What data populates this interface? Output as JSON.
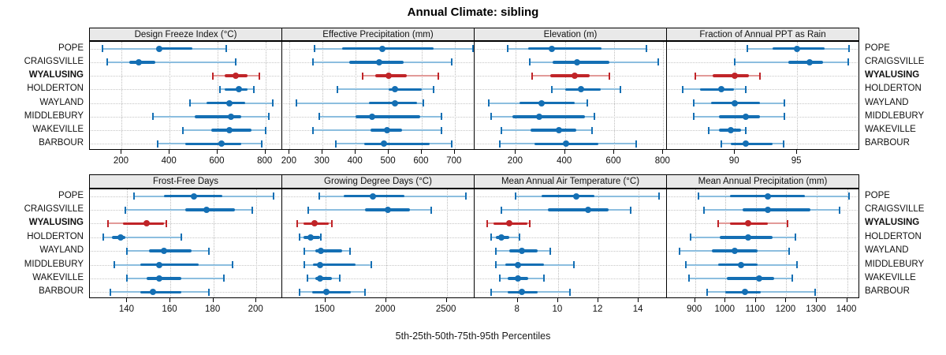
{
  "title": "Annual Climate: sibling",
  "caption": "5th-25th-50th-75th-95th Percentiles",
  "locations": [
    "POPE",
    "CRAIGSVILLE",
    "WYALUSING",
    "HOLDERTON",
    "WAYLAND",
    "MIDDLEBURY",
    "WAKEVILLE",
    "BARBOUR"
  ],
  "highlighted_location": "WYALUSING",
  "colors": {
    "series_dark": "#146fb4",
    "series_light": "#8cbedf",
    "highlight_dark": "#c02428",
    "highlight_light": "#e29a98",
    "strip_bg": "#e9e9e9",
    "grid": "#c4c4c4",
    "panel_border": "#000000"
  },
  "chart_data": {
    "type": "dotplot",
    "subtype": "percentile-intervals",
    "percentile_labels": [
      "5th",
      "25th",
      "50th",
      "75th",
      "95th"
    ],
    "layout": {
      "rows": 2,
      "cols": 4,
      "grid_on": true,
      "y_labels_left_and_right": true
    },
    "panels": [
      {
        "slug": "design-freeze-index",
        "title": "Design Freeze Index (°C)",
        "ticks": [
          200,
          400,
          600,
          800
        ],
        "xlim": [
          70,
          870
        ],
        "series": [
          {
            "location": "POPE",
            "values": [
              120,
              345,
              355,
              495,
              635
            ]
          },
          {
            "location": "CRAIGSVILLE",
            "values": [
              140,
              230,
              270,
              340,
              675
            ]
          },
          {
            "location": "WYALUSING",
            "values": [
              580,
              630,
              675,
              725,
              775
            ]
          },
          {
            "location": "HOLDERTON",
            "values": [
              610,
              630,
              690,
              725,
              750
            ]
          },
          {
            "location": "WAYLAND",
            "values": [
              485,
              555,
              650,
              715,
              830
            ]
          },
          {
            "location": "MIDDLEBURY",
            "values": [
              330,
              505,
              655,
              700,
              815
            ]
          },
          {
            "location": "WAKEVILLE",
            "values": [
              455,
              575,
              650,
              740,
              800
            ]
          },
          {
            "location": "BARBOUR",
            "values": [
              350,
              465,
              615,
              700,
              785
            ]
          }
        ]
      },
      {
        "slug": "effective-precipitation",
        "title": "Effective Precipitation (mm)",
        "ticks": [
          200,
          300,
          400,
          500,
          600,
          700
        ],
        "xlim": [
          180,
          760
        ],
        "series": [
          {
            "location": "POPE",
            "values": [
              275,
              360,
              480,
              635,
              755
            ]
          },
          {
            "location": "CRAIGSVILLE",
            "values": [
              270,
              380,
              470,
              545,
              690
            ]
          },
          {
            "location": "WYALUSING",
            "values": [
              420,
              460,
              500,
              555,
              650
            ]
          },
          {
            "location": "HOLDERTON",
            "values": [
              345,
              500,
              520,
              600,
              635
            ]
          },
          {
            "location": "WAYLAND",
            "values": [
              220,
              440,
              520,
              585,
              605
            ]
          },
          {
            "location": "MIDDLEBURY",
            "values": [
              290,
              400,
              450,
              595,
              660
            ]
          },
          {
            "location": "WAKEVILLE",
            "values": [
              270,
              445,
              495,
              540,
              660
            ]
          },
          {
            "location": "BARBOUR",
            "values": [
              340,
              425,
              485,
              625,
              690
            ]
          }
        ]
      },
      {
        "slug": "elevation",
        "title": "Elevation (m)",
        "ticks": [
          200,
          400,
          600,
          800
        ],
        "xlim": [
          35,
          815
        ],
        "series": [
          {
            "location": "POPE",
            "values": [
              165,
              250,
              345,
              550,
              730
            ]
          },
          {
            "location": "CRAIGSVILLE",
            "values": [
              255,
              350,
              450,
              580,
              780
            ]
          },
          {
            "location": "WYALUSING",
            "values": [
              265,
              340,
              440,
              500,
              580
            ]
          },
          {
            "location": "HOLDERTON",
            "values": [
              345,
              400,
              465,
              545,
              625
            ]
          },
          {
            "location": "WAYLAND",
            "values": [
              90,
              215,
              305,
              440,
              490
            ]
          },
          {
            "location": "MIDDLEBURY",
            "values": [
              100,
              185,
              295,
              480,
              520
            ]
          },
          {
            "location": "WAKEVILLE",
            "values": [
              140,
              260,
              375,
              445,
              510
            ]
          },
          {
            "location": "BARBOUR",
            "values": [
              135,
              275,
              405,
              535,
              690
            ]
          }
        ]
      },
      {
        "slug": "fraction-annual-ppt-rain",
        "title": "Fraction of Annual PPT as Rain",
        "ticks": [
          90,
          95
        ],
        "xlim": [
          84.6,
          100.0
        ],
        "series": [
          {
            "location": "POPE",
            "values": [
              91.0,
              93.0,
              95.0,
              97.2,
              99.2
            ]
          },
          {
            "location": "CRAIGSVILLE",
            "values": [
              90.0,
              94.3,
              96.0,
              97.1,
              99.1
            ]
          },
          {
            "location": "WYALUSING",
            "values": [
              86.8,
              88.2,
              90.0,
              91.1,
              92.0
            ]
          },
          {
            "location": "HOLDERTON",
            "values": [
              85.8,
              87.2,
              88.9,
              89.9,
              90.9
            ]
          },
          {
            "location": "WAYLAND",
            "values": [
              86.7,
              88.1,
              90.0,
              92.0,
              94.0
            ]
          },
          {
            "location": "MIDDLEBURY",
            "values": [
              86.7,
              88.7,
              90.9,
              92.0,
              94.0
            ]
          },
          {
            "location": "WAKEVILLE",
            "values": [
              87.9,
              88.7,
              89.7,
              90.5,
              90.9
            ]
          },
          {
            "location": "BARBOUR",
            "values": [
              88.9,
              89.7,
              90.9,
              93.0,
              93.9
            ]
          }
        ]
      },
      {
        "slug": "frost-free-days",
        "title": "Frost-Free Days",
        "ticks": [
          140,
          160,
          180,
          200
        ],
        "xlim": [
          123,
          212
        ],
        "series": [
          {
            "location": "POPE",
            "values": [
              143,
              157,
              171,
              184,
              208
            ]
          },
          {
            "location": "CRAIGSVILLE",
            "values": [
              139,
              167,
              177,
              190,
              198
            ]
          },
          {
            "location": "WYALUSING",
            "values": [
              131,
              138,
              149,
              157,
              158
            ]
          },
          {
            "location": "HOLDERTON",
            "values": [
              129,
              133,
              137,
              139,
              165
            ]
          },
          {
            "location": "WAYLAND",
            "values": [
              140,
              150,
              157,
              170,
              178
            ]
          },
          {
            "location": "MIDDLEBURY",
            "values": [
              134,
              146,
              155,
              173,
              189
            ]
          },
          {
            "location": "WAKEVILLE",
            "values": [
              140,
              149,
              155,
              165,
              185
            ]
          },
          {
            "location": "BARBOUR",
            "values": [
              132,
              146,
              152,
              165,
              178
            ]
          }
        ]
      },
      {
        "slug": "growing-degree-days",
        "title": "Growing Degree Days (°C)",
        "ticks": [
          1500,
          2000,
          2500
        ],
        "xlim": [
          1150,
          2730
        ],
        "series": [
          {
            "location": "POPE",
            "values": [
              1450,
              1650,
              1890,
              2150,
              2660
            ]
          },
          {
            "location": "CRAIGSVILLE",
            "values": [
              1360,
              1825,
              2015,
              2195,
              2375
            ]
          },
          {
            "location": "WYALUSING",
            "values": [
              1265,
              1320,
              1410,
              1530,
              1550
            ]
          },
          {
            "location": "HOLDERTON",
            "values": [
              1285,
              1320,
              1380,
              1455,
              1465
            ]
          },
          {
            "location": "WAYLAND",
            "values": [
              1325,
              1415,
              1465,
              1635,
              1705
            ]
          },
          {
            "location": "MIDDLEBURY",
            "values": [
              1325,
              1395,
              1455,
              1750,
              1875
            ]
          },
          {
            "location": "WAKEVILLE",
            "values": [
              1350,
              1415,
              1455,
              1550,
              1615
            ]
          },
          {
            "location": "BARBOUR",
            "values": [
              1285,
              1390,
              1510,
              1710,
              1825
            ]
          }
        ]
      },
      {
        "slug": "mean-annual-air-temperature",
        "title": "Mean Annual Air Temperature (°C)",
        "ticks": [
          8,
          10,
          12,
          14
        ],
        "xlim": [
          5.9,
          15.4
        ],
        "series": [
          {
            "location": "POPE",
            "values": [
              7.9,
              9.2,
              10.9,
              11.8,
              15.0
            ]
          },
          {
            "location": "CRAIGSVILLE",
            "values": [
              7.2,
              9.5,
              11.5,
              12.5,
              13.6
            ]
          },
          {
            "location": "WYALUSING",
            "values": [
              6.5,
              6.8,
              7.6,
              8.5,
              8.6
            ]
          },
          {
            "location": "HOLDERTON",
            "values": [
              6.7,
              6.9,
              7.2,
              7.6,
              8.1
            ]
          },
          {
            "location": "WAYLAND",
            "values": [
              6.9,
              7.6,
              8.2,
              9.0,
              9.6
            ]
          },
          {
            "location": "MIDDLEBURY",
            "values": [
              6.9,
              7.4,
              8.0,
              9.3,
              10.8
            ]
          },
          {
            "location": "WAKEVILLE",
            "values": [
              7.1,
              7.5,
              8.0,
              8.5,
              9.3
            ]
          },
          {
            "location": "BARBOUR",
            "values": [
              6.7,
              7.5,
              8.2,
              9.0,
              10.6
            ]
          }
        ]
      },
      {
        "slug": "mean-annual-precipitation",
        "title": "Mean Annual Precipitation (mm)",
        "ticks": [
          900,
          1000,
          1100,
          1200,
          1300,
          1400
        ],
        "xlim": [
          810,
          1440
        ],
        "series": [
          {
            "location": "POPE",
            "values": [
              910,
              1015,
              1140,
              1260,
              1405
            ]
          },
          {
            "location": "CRAIGSVILLE",
            "values": [
              930,
              1055,
              1140,
              1280,
              1375
            ]
          },
          {
            "location": "WYALUSING",
            "values": [
              975,
              1015,
              1075,
              1140,
              1205
            ]
          },
          {
            "location": "HOLDERTON",
            "values": [
              885,
              980,
              1075,
              1155,
              1230
            ]
          },
          {
            "location": "WAYLAND",
            "values": [
              850,
              955,
              1030,
              1105,
              1210
            ]
          },
          {
            "location": "MIDDLEBURY",
            "values": [
              870,
              975,
              1050,
              1105,
              1235
            ]
          },
          {
            "location": "WAKEVILLE",
            "values": [
              880,
              1005,
              1110,
              1160,
              1220
            ]
          },
          {
            "location": "BARBOUR",
            "values": [
              940,
              1000,
              1065,
              1115,
              1295
            ]
          }
        ]
      }
    ]
  }
}
